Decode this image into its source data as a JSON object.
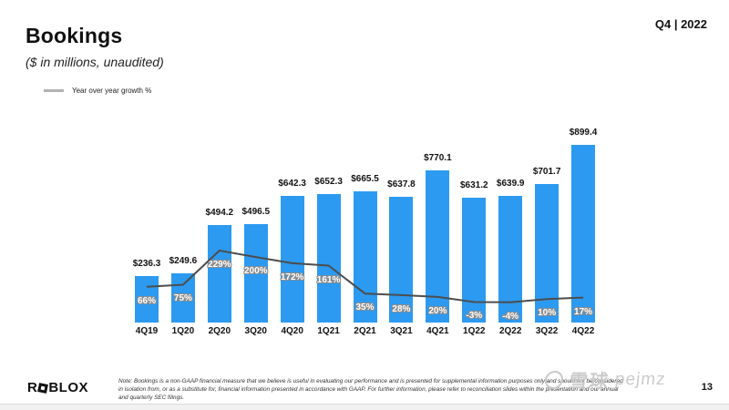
{
  "slide": {
    "title": "Bookings",
    "subtitle": "($ in millions, unaudited)",
    "period": "Q4 | 2022"
  },
  "legend": {
    "label": "Year over year growth %"
  },
  "chart_data": {
    "type": "bar",
    "title": "Bookings",
    "subtitle": "($ in millions, unaudited)",
    "categories": [
      "4Q19",
      "1Q20",
      "2Q20",
      "3Q20",
      "4Q20",
      "1Q21",
      "2Q21",
      "3Q21",
      "4Q21",
      "1Q22",
      "2Q22",
      "3Q22",
      "4Q22"
    ],
    "series": [
      {
        "name": "Bookings ($ in millions)",
        "type": "bar",
        "values": [
          236.3,
          249.6,
          494.2,
          496.5,
          642.3,
          652.3,
          665.5,
          637.8,
          770.1,
          631.2,
          639.9,
          701.7,
          899.4
        ]
      },
      {
        "name": "Year over year growth %",
        "type": "line",
        "values": [
          66,
          75,
          229,
          200,
          172,
          161,
          35,
          28,
          20,
          -3,
          -4,
          10,
          17
        ]
      }
    ],
    "value_prefix": "$",
    "growth_suffix": "%",
    "bar_color": "#2C9AF0",
    "line_color": "#4d4d4d",
    "grid": "off",
    "legend_position": "top-left",
    "ylim_bar": [
      0,
      900
    ],
    "ylim_line": [
      -4,
      229
    ]
  },
  "footer": {
    "logo": {
      "r": "R",
      "blox": "BLOX"
    },
    "note_lines": [
      "Note: Bookings is a non-GAAP financial measure that we believe is useful in evaluating our performance and is presented for supplemental information purposes only and should not be considered",
      "in isolation from, or as a substitute for, financial information presented in accordance with GAAP. For further information, please refer to reconciliation slides within the presentation and our annual",
      "and quarterly SEC filings."
    ],
    "page_number": "13"
  },
  "watermark": {
    "cn": "雪球",
    "latin": "pejmz"
  }
}
